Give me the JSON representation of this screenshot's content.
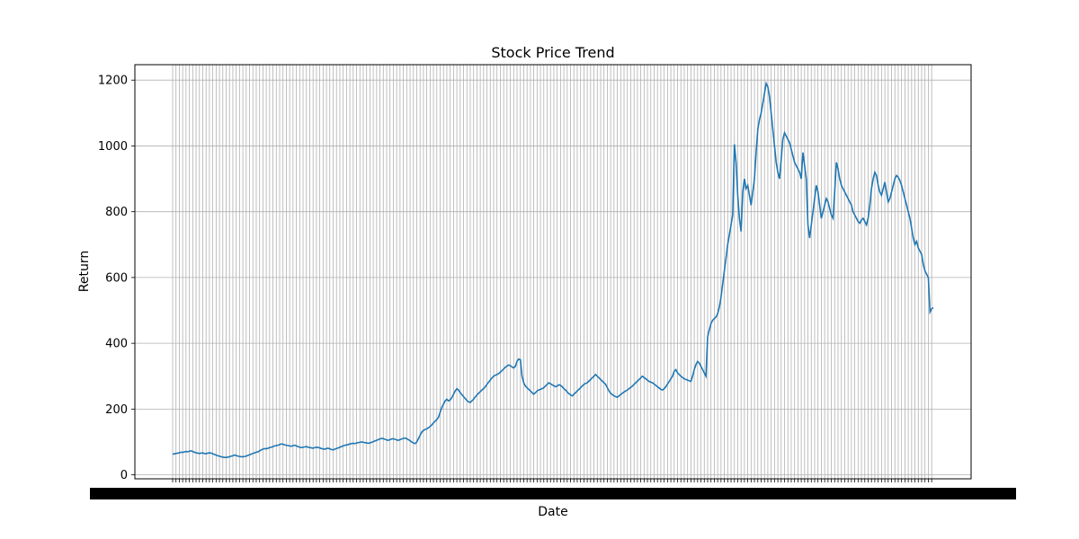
{
  "chart_data": {
    "type": "line",
    "title": "Stock Price Trend",
    "xlabel": "Date",
    "ylabel": "Return",
    "ylim": [
      -12,
      1247
    ],
    "yticks": [
      0,
      200,
      400,
      600,
      800,
      1000,
      1200
    ],
    "grid": true,
    "line_color": "#1f77b4",
    "grid_color": "#b0b0b0",
    "x_tick_labels_note": "overlapping dense date tick labels (illegible)",
    "series": [
      {
        "values": [
          63,
          64,
          65,
          66,
          67,
          69,
          68,
          70,
          71,
          70,
          72,
          73,
          71,
          69,
          67,
          66,
          65,
          66,
          67,
          65,
          64,
          66,
          67,
          66,
          64,
          62,
          60,
          58,
          57,
          55,
          54,
          53,
          53,
          54,
          55,
          57,
          58,
          60,
          59,
          57,
          56,
          55,
          55,
          56,
          57,
          59,
          61,
          63,
          65,
          67,
          69,
          70,
          73,
          76,
          78,
          80,
          79,
          81,
          83,
          84,
          86,
          88,
          89,
          90,
          92,
          94,
          93,
          91,
          90,
          89,
          88,
          87,
          89,
          90,
          88,
          86,
          84,
          83,
          84,
          85,
          86,
          84,
          83,
          82,
          81,
          83,
          84,
          83,
          82,
          80,
          79,
          78,
          80,
          81,
          79,
          77,
          76,
          78,
          80,
          82,
          84,
          86,
          88,
          90,
          91,
          92,
          94,
          95,
          96,
          95,
          97,
          98,
          99,
          100,
          99,
          98,
          97,
          96,
          97,
          99,
          101,
          103,
          105,
          107,
          109,
          111,
          110,
          108,
          106,
          105,
          107,
          109,
          110,
          108,
          106,
          105,
          107,
          109,
          111,
          112,
          110,
          107,
          104,
          100,
          97,
          95,
          100,
          110,
          120,
          130,
          135,
          138,
          140,
          143,
          147,
          152,
          158,
          163,
          168,
          175,
          190,
          205,
          215,
          225,
          230,
          225,
          228,
          235,
          245,
          255,
          262,
          258,
          250,
          244,
          238,
          232,
          226,
          222,
          220,
          225,
          230,
          237,
          243,
          248,
          253,
          258,
          262,
          268,
          275,
          282,
          288,
          295,
          300,
          303,
          305,
          308,
          312,
          317,
          322,
          327,
          331,
          334,
          332,
          328,
          325,
          330,
          345,
          352,
          350,
          300,
          280,
          270,
          265,
          260,
          255,
          250,
          245,
          250,
          255,
          258,
          260,
          262,
          265,
          270,
          275,
          280,
          277,
          274,
          271,
          268,
          270,
          274,
          272,
          268,
          262,
          258,
          252,
          247,
          243,
          240,
          245,
          250,
          255,
          260,
          265,
          270,
          275,
          278,
          280,
          285,
          290,
          295,
          300,
          305,
          300,
          295,
          290,
          285,
          280,
          275,
          265,
          255,
          248,
          244,
          240,
          238,
          236,
          240,
          244,
          248,
          252,
          255,
          258,
          262,
          266,
          270,
          275,
          280,
          285,
          290,
          295,
          300,
          296,
          292,
          288,
          284,
          282,
          280,
          276,
          272,
          268,
          264,
          260,
          258,
          262,
          268,
          276,
          284,
          292,
          300,
          315,
          320,
          310,
          305,
          300,
          296,
          292,
          290,
          288,
          286,
          284,
          300,
          320,
          335,
          345,
          340,
          330,
          320,
          310,
          300,
          420,
          440,
          460,
          470,
          475,
          480,
          490,
          510,
          540,
          580,
          620,
          660,
          700,
          730,
          760,
          790,
          1005,
          950,
          850,
          780,
          740,
          860,
          900,
          870,
          880,
          850,
          820,
          860,
          900,
          980,
          1050,
          1080,
          1100,
          1130,
          1160,
          1190,
          1180,
          1150,
          1100,
          1050,
          1000,
          950,
          920,
          900,
          960,
          1020,
          1040,
          1030,
          1020,
          1010,
          990,
          970,
          950,
          940,
          930,
          920,
          900,
          980,
          940,
          900,
          760,
          720,
          760,
          800,
          840,
          880,
          860,
          820,
          780,
          800,
          820,
          840,
          830,
          810,
          790,
          780,
          860,
          950,
          930,
          900,
          880,
          870,
          860,
          850,
          840,
          830,
          820,
          800,
          790,
          780,
          770,
          765,
          775,
          780,
          770,
          760,
          780,
          820,
          870,
          900,
          920,
          910,
          880,
          860,
          850,
          870,
          890,
          860,
          830,
          840,
          860,
          880,
          900,
          910,
          905,
          895,
          880,
          860,
          840,
          820,
          800,
          780,
          750,
          720,
          700,
          710,
          690,
          680,
          670,
          640,
          620,
          610,
          600,
          495,
          505,
          508
        ]
      }
    ]
  }
}
